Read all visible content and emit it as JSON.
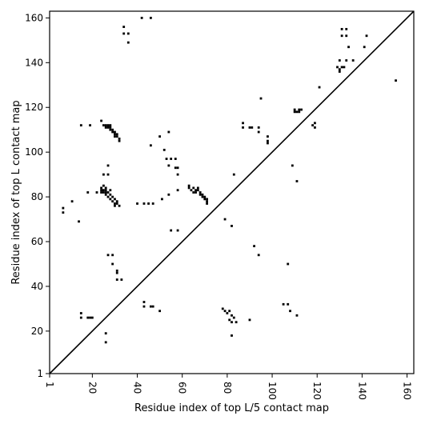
{
  "chart_data": {
    "type": "scatter",
    "title": "",
    "xlabel": "Residue index of top L/5 contact map",
    "ylabel": "Residue index of top L contact map",
    "xlim": [
      1,
      163
    ],
    "ylim": [
      1,
      163
    ],
    "xticks": [
      1,
      20,
      40,
      60,
      80,
      100,
      120,
      140,
      160
    ],
    "yticks": [
      1,
      20,
      40,
      60,
      80,
      100,
      120,
      140,
      160
    ],
    "xticklabels": [
      "1",
      "20",
      "40",
      "60",
      "80",
      "100",
      "120",
      "140",
      "160"
    ],
    "yticklabels": [
      "1",
      "20",
      "40",
      "60",
      "80",
      "100",
      "120",
      "140",
      "160"
    ],
    "diagonal": true,
    "grid": false,
    "legend": "none",
    "marker_color": "#000000",
    "points": [
      [
        7,
        75
      ],
      [
        7,
        73
      ],
      [
        11,
        78
      ],
      [
        14,
        69
      ],
      [
        15,
        112
      ],
      [
        19,
        112
      ],
      [
        18,
        82
      ],
      [
        22,
        82
      ],
      [
        15,
        28
      ],
      [
        15,
        26
      ],
      [
        19,
        26
      ],
      [
        18,
        26
      ],
      [
        20,
        26
      ],
      [
        24,
        114
      ],
      [
        25,
        112
      ],
      [
        26,
        111
      ],
      [
        27,
        112
      ],
      [
        28,
        110
      ],
      [
        29,
        109
      ],
      [
        30,
        108
      ],
      [
        31,
        107
      ],
      [
        32,
        106
      ],
      [
        32,
        105
      ],
      [
        28,
        112
      ],
      [
        26,
        112
      ],
      [
        27,
        111
      ],
      [
        28,
        111
      ],
      [
        29,
        110
      ],
      [
        30,
        109
      ],
      [
        31,
        108
      ],
      [
        30,
        107
      ],
      [
        25,
        90
      ],
      [
        27,
        90
      ],
      [
        27,
        94
      ],
      [
        24,
        84
      ],
      [
        25,
        85
      ],
      [
        26,
        83
      ],
      [
        27,
        82
      ],
      [
        28,
        81
      ],
      [
        29,
        80
      ],
      [
        30,
        79
      ],
      [
        31,
        78
      ],
      [
        31,
        77
      ],
      [
        30,
        76
      ],
      [
        32,
        76
      ],
      [
        24,
        83
      ],
      [
        25,
        83
      ],
      [
        26,
        81
      ],
      [
        27,
        80
      ],
      [
        28,
        79
      ],
      [
        29,
        78
      ],
      [
        30,
        77
      ],
      [
        26,
        84
      ],
      [
        28,
        83
      ],
      [
        24,
        82
      ],
      [
        25,
        82
      ],
      [
        26,
        82
      ],
      [
        27,
        54
      ],
      [
        29,
        54
      ],
      [
        29,
        50
      ],
      [
        31,
        47
      ],
      [
        31,
        46
      ],
      [
        31,
        43
      ],
      [
        33,
        43
      ],
      [
        26,
        19
      ],
      [
        26,
        15
      ],
      [
        34,
        156
      ],
      [
        34,
        153
      ],
      [
        36,
        153
      ],
      [
        36,
        149
      ],
      [
        42,
        160
      ],
      [
        46,
        160
      ],
      [
        40,
        77
      ],
      [
        43,
        77
      ],
      [
        45,
        77
      ],
      [
        47,
        77
      ],
      [
        43,
        33
      ],
      [
        43,
        31
      ],
      [
        46,
        31
      ],
      [
        47,
        31
      ],
      [
        50,
        29
      ],
      [
        46,
        103
      ],
      [
        50,
        107
      ],
      [
        52,
        101
      ],
      [
        53,
        97
      ],
      [
        54,
        109
      ],
      [
        54,
        94
      ],
      [
        55,
        97
      ],
      [
        57,
        97
      ],
      [
        57,
        93
      ],
      [
        58,
        93
      ],
      [
        58,
        90
      ],
      [
        58,
        83
      ],
      [
        51,
        79
      ],
      [
        54,
        81
      ],
      [
        55,
        65
      ],
      [
        58,
        65
      ],
      [
        63,
        85
      ],
      [
        63,
        84
      ],
      [
        64,
        83
      ],
      [
        65,
        84
      ],
      [
        66,
        82
      ],
      [
        67,
        84
      ],
      [
        67,
        83
      ],
      [
        68,
        82
      ],
      [
        69,
        81
      ],
      [
        69,
        80
      ],
      [
        70,
        80
      ],
      [
        71,
        79
      ],
      [
        71,
        78
      ],
      [
        71,
        77
      ],
      [
        65,
        82
      ],
      [
        66,
        83
      ],
      [
        68,
        81
      ],
      [
        70,
        79
      ],
      [
        79,
        70
      ],
      [
        82,
        67
      ],
      [
        83,
        90
      ],
      [
        87,
        113
      ],
      [
        87,
        111
      ],
      [
        90,
        111
      ],
      [
        91,
        111
      ],
      [
        94,
        111
      ],
      [
        94,
        109
      ],
      [
        95,
        124
      ],
      [
        98,
        107
      ],
      [
        98,
        105
      ],
      [
        98,
        104
      ],
      [
        78,
        30
      ],
      [
        79,
        29
      ],
      [
        80,
        28
      ],
      [
        81,
        29
      ],
      [
        82,
        27
      ],
      [
        83,
        26
      ],
      [
        81,
        25
      ],
      [
        82,
        24
      ],
      [
        84,
        24
      ],
      [
        82,
        18
      ],
      [
        90,
        25
      ],
      [
        92,
        58
      ],
      [
        94,
        54
      ],
      [
        105,
        32
      ],
      [
        107,
        32
      ],
      [
        107,
        50
      ],
      [
        108,
        29
      ],
      [
        109,
        94
      ],
      [
        111,
        87
      ],
      [
        111,
        27
      ],
      [
        110,
        119
      ],
      [
        111,
        118
      ],
      [
        112,
        119
      ],
      [
        113,
        119
      ],
      [
        110,
        118
      ],
      [
        112,
        118
      ],
      [
        118,
        112
      ],
      [
        119,
        113
      ],
      [
        119,
        111
      ],
      [
        121,
        129
      ],
      [
        129,
        138
      ],
      [
        130,
        137
      ],
      [
        130,
        136
      ],
      [
        131,
        138
      ],
      [
        132,
        138
      ],
      [
        133,
        141
      ],
      [
        130,
        141
      ],
      [
        133,
        155
      ],
      [
        131,
        155
      ],
      [
        131,
        152
      ],
      [
        133,
        152
      ],
      [
        134,
        147
      ],
      [
        136,
        141
      ],
      [
        141,
        147
      ],
      [
        142,
        152
      ],
      [
        155,
        132
      ]
    ]
  }
}
